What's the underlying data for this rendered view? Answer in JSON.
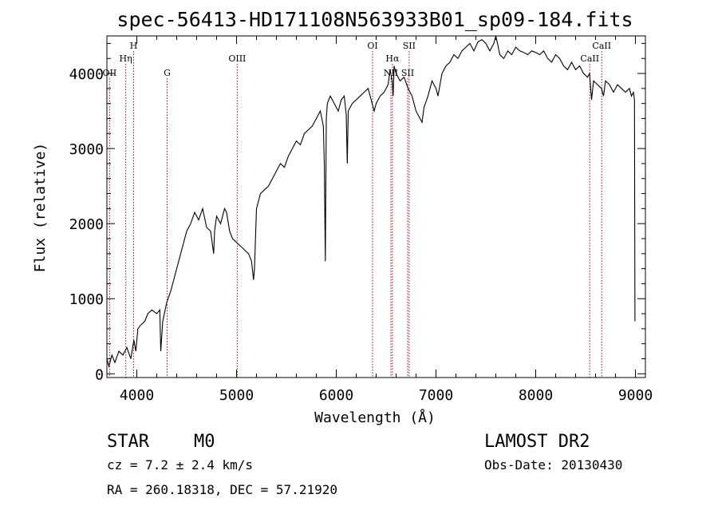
{
  "title": "spec-56413-HD171108N563933B01_sp09-184.fits",
  "chart_data": {
    "type": "line",
    "xlabel": "Wavelength (Å)",
    "ylabel": "Flux (relative)",
    "xlim": [
      3700,
      9100
    ],
    "ylim": [
      -50,
      4500
    ],
    "x_ticks": [
      4000,
      5000,
      6000,
      7000,
      8000,
      9000
    ],
    "y_ticks": [
      0,
      1000,
      2000,
      3000,
      4000
    ],
    "grid": false,
    "series": [
      {
        "x": [
          3700,
          3720,
          3750,
          3780,
          3820,
          3860,
          3880,
          3900,
          3940,
          3970,
          3990,
          4010,
          4040,
          4080,
          4110,
          4150,
          4200,
          4230,
          4240,
          4260,
          4300,
          4340,
          4380,
          4420,
          4460,
          4500,
          4540,
          4580,
          4620,
          4660,
          4700,
          4740,
          4770,
          4780,
          4800,
          4840,
          4880,
          4900,
          4930,
          4960,
          5000,
          5040,
          5080,
          5120,
          5150,
          5170,
          5180,
          5200,
          5220,
          5240,
          5280,
          5320,
          5360,
          5400,
          5440,
          5480,
          5520,
          5560,
          5600,
          5640,
          5680,
          5720,
          5760,
          5800,
          5840,
          5870,
          5880,
          5890,
          5900,
          5910,
          5940,
          5980,
          6020,
          6050,
          6080,
          6100,
          6110,
          6120,
          6160,
          6200,
          6240,
          6280,
          6320,
          6360,
          6380,
          6400,
          6440,
          6480,
          6520,
          6540,
          6560,
          6570,
          6580,
          6600,
          6640,
          6680,
          6720,
          6760,
          6800,
          6840,
          6860,
          6880,
          6920,
          6960,
          7000,
          7020,
          7060,
          7100,
          7140,
          7180,
          7220,
          7260,
          7300,
          7340,
          7380,
          7420,
          7460,
          7500,
          7540,
          7580,
          7600,
          7620,
          7640,
          7680,
          7720,
          7760,
          7800,
          7840,
          7880,
          7920,
          7960,
          8000,
          8040,
          8080,
          8120,
          8160,
          8200,
          8240,
          8280,
          8320,
          8360,
          8400,
          8440,
          8480,
          8520,
          8540,
          8560,
          8580,
          8620,
          8660,
          8680,
          8700,
          8740,
          8780,
          8820,
          8860,
          8900,
          8940,
          8960,
          8980,
          8990,
          8995
        ],
        "y": [
          200,
          100,
          250,
          150,
          300,
          250,
          300,
          350,
          200,
          450,
          300,
          600,
          650,
          700,
          800,
          850,
          800,
          850,
          300,
          700,
          950,
          1100,
          1300,
          1500,
          1700,
          1900,
          2000,
          2150,
          2050,
          2200,
          1950,
          1900,
          1600,
          1900,
          2100,
          2000,
          2200,
          2150,
          1900,
          1800,
          1750,
          1700,
          1650,
          1600,
          1500,
          1250,
          1400,
          2200,
          2300,
          2400,
          2450,
          2500,
          2600,
          2700,
          2800,
          2750,
          2900,
          3000,
          3100,
          3050,
          3200,
          3250,
          3300,
          3400,
          3500,
          3300,
          2800,
          1500,
          3400,
          3600,
          3700,
          3600,
          3500,
          3650,
          3700,
          3450,
          2800,
          3500,
          3600,
          3650,
          3700,
          3750,
          3800,
          3600,
          3500,
          3600,
          3700,
          3750,
          3850,
          4050,
          3900,
          3700,
          4100,
          4000,
          3900,
          3950,
          3800,
          3700,
          3500,
          3400,
          3350,
          3550,
          3700,
          3900,
          3800,
          3700,
          4000,
          4100,
          4150,
          4250,
          4200,
          4300,
          4350,
          4400,
          4300,
          4420,
          4450,
          4400,
          4300,
          4400,
          4500,
          4380,
          4250,
          4200,
          4300,
          4250,
          4350,
          4300,
          4280,
          4250,
          4300,
          4280,
          4250,
          4300,
          4200,
          4150,
          4250,
          4200,
          4100,
          4050,
          4150,
          4050,
          4100,
          4000,
          3950,
          4000,
          3650,
          3900,
          3850,
          3800,
          3700,
          3900,
          3850,
          3750,
          3850,
          3800,
          3750,
          3800,
          3700,
          3750,
          3650,
          700
        ]
      }
    ],
    "lines": [
      {
        "label": "Hη",
        "x": 3889,
        "row": 2
      },
      {
        "label": "OII",
        "x": 3727,
        "row": 3
      },
      {
        "label": "H",
        "x": 3968,
        "row": 1
      },
      {
        "label": "G",
        "x": 4304,
        "row": 3
      },
      {
        "label": "OIII",
        "x": 5007,
        "row": 2
      },
      {
        "label": "OI",
        "x": 6364,
        "row": 1
      },
      {
        "label": "Hα",
        "x": 6563,
        "row": 2
      },
      {
        "label": "NII",
        "x": 6548,
        "row": 3
      },
      {
        "label": "SII",
        "x": 6731,
        "row": 1
      },
      {
        "label": "SII",
        "x": 6716,
        "row": 3
      },
      {
        "label": "CaII",
        "x": 8662,
        "row": 1
      },
      {
        "label": "CaII",
        "x": 8542,
        "row": 2
      }
    ]
  },
  "info": {
    "class_label": "STAR",
    "subclass": "M0",
    "survey": "LAMOST DR2",
    "cz": "cz = 7.2 ± 2.4 km/s",
    "obs_date": "Obs-Date: 20130430",
    "coords": "RA = 260.18318, DEC =  57.21920"
  },
  "colors": {
    "spectrum": "#000000",
    "line_markers": "#cc0000"
  }
}
